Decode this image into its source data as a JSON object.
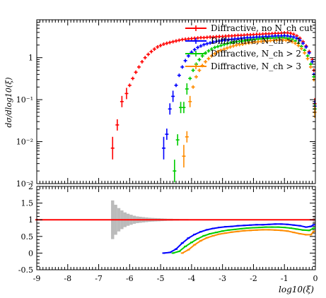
{
  "chart_data": [
    {
      "panel": "main",
      "type": "scatter",
      "ylabel": "dσ/dlog10(ξ)",
      "yscale": "log",
      "xlim": [
        -9,
        0
      ],
      "ylim": [
        0.001,
        8
      ],
      "y_tick_labels": [
        "10⁻³",
        "10⁻²",
        "10⁻¹",
        "1"
      ],
      "legend_position": "top-right",
      "series": [
        {
          "name": "Diffractive, no N_ch cut",
          "color": "#ff0000",
          "x": [
            -6.55,
            -6.4,
            -6.25,
            -6.1,
            -6.0,
            -5.9,
            -5.8,
            -5.7,
            -5.6,
            -5.5,
            -5.4,
            -5.3,
            -5.2,
            -5.1,
            -5.0,
            -4.9,
            -4.8,
            -4.7,
            -4.6,
            -4.5,
            -4.4,
            -4.3,
            -4.2,
            -4.1,
            -4.0,
            -3.9,
            -3.8,
            -3.7,
            -3.6,
            -3.5,
            -3.4,
            -3.3,
            -3.2,
            -3.1,
            -3.0,
            -2.9,
            -2.8,
            -2.7,
            -2.6,
            -2.5,
            -2.4,
            -2.3,
            -2.2,
            -2.1,
            -2.0,
            -1.9,
            -1.8,
            -1.7,
            -1.6,
            -1.5,
            -1.4,
            -1.3,
            -1.2,
            -1.1,
            -1.0,
            -0.9,
            -0.8,
            -0.7,
            -0.6,
            -0.5,
            -0.4,
            -0.3,
            -0.2,
            -0.1,
            -0.05,
            -0.02
          ],
          "y": [
            0.007,
            0.025,
            0.09,
            0.14,
            0.22,
            0.32,
            0.45,
            0.6,
            0.8,
            1.0,
            1.2,
            1.4,
            1.6,
            1.8,
            1.95,
            2.1,
            2.2,
            2.3,
            2.4,
            2.5,
            2.6,
            2.7,
            2.75,
            2.8,
            2.85,
            2.9,
            2.95,
            3.0,
            3.0,
            3.05,
            3.1,
            3.1,
            3.15,
            3.2,
            3.2,
            3.25,
            3.3,
            3.3,
            3.35,
            3.4,
            3.4,
            3.45,
            3.5,
            3.5,
            3.55,
            3.6,
            3.6,
            3.65,
            3.7,
            3.7,
            3.75,
            3.8,
            3.8,
            3.85,
            3.9,
            3.9,
            3.8,
            3.6,
            3.3,
            2.9,
            2.4,
            1.9,
            1.4,
            0.9,
            0.5,
            0.08
          ]
        },
        {
          "name": "Diffractive, N_ch > 1",
          "color": "#0000ff",
          "x": [
            -4.9,
            -4.8,
            -4.7,
            -4.6,
            -4.5,
            -4.4,
            -4.3,
            -4.2,
            -4.1,
            -4.0,
            -3.9,
            -3.8,
            -3.7,
            -3.6,
            -3.5,
            -3.4,
            -3.3,
            -3.2,
            -3.1,
            -3.0,
            -2.9,
            -2.8,
            -2.7,
            -2.6,
            -2.5,
            -2.4,
            -2.3,
            -2.2,
            -2.1,
            -2.0,
            -1.9,
            -1.8,
            -1.7,
            -1.6,
            -1.5,
            -1.4,
            -1.3,
            -1.2,
            -1.1,
            -1.0,
            -0.9,
            -0.8,
            -0.7,
            -0.6,
            -0.5,
            -0.4,
            -0.3,
            -0.2,
            -0.1,
            -0.05,
            -0.02
          ],
          "y": [
            0.007,
            0.015,
            0.06,
            0.12,
            0.22,
            0.38,
            0.6,
            0.85,
            1.1,
            1.35,
            1.55,
            1.75,
            1.9,
            2.05,
            2.15,
            2.25,
            2.35,
            2.45,
            2.5,
            2.6,
            2.65,
            2.7,
            2.75,
            2.8,
            2.85,
            2.9,
            2.95,
            3.0,
            3.0,
            3.05,
            3.1,
            3.1,
            3.15,
            3.2,
            3.2,
            3.25,
            3.3,
            3.3,
            3.3,
            3.35,
            3.3,
            3.2,
            3.1,
            2.9,
            2.6,
            2.2,
            1.8,
            1.3,
            0.8,
            0.4,
            0.07
          ]
        },
        {
          "name": "Diffractive, N_ch > 2",
          "color": "#00cc00",
          "x": [
            -4.55,
            -4.45,
            -4.35,
            -4.25,
            -4.15,
            -4.05,
            -3.95,
            -3.85,
            -3.75,
            -3.65,
            -3.55,
            -3.45,
            -3.35,
            -3.25,
            -3.15,
            -3.05,
            -2.95,
            -2.85,
            -2.75,
            -2.65,
            -2.55,
            -2.45,
            -2.35,
            -2.25,
            -2.15,
            -2.05,
            -1.95,
            -1.85,
            -1.75,
            -1.65,
            -1.55,
            -1.45,
            -1.35,
            -1.25,
            -1.15,
            -1.05,
            -0.95,
            -0.85,
            -0.75,
            -0.65,
            -0.55,
            -0.45,
            -0.35,
            -0.25,
            -0.15,
            -0.05,
            -0.02
          ],
          "y": [
            0.002,
            0.011,
            0.065,
            0.065,
            0.18,
            0.32,
            0.5,
            0.7,
            0.9,
            1.1,
            1.3,
            1.45,
            1.6,
            1.75,
            1.85,
            1.95,
            2.05,
            2.15,
            2.25,
            2.3,
            2.4,
            2.45,
            2.5,
            2.55,
            2.6,
            2.65,
            2.7,
            2.75,
            2.8,
            2.85,
            2.85,
            2.9,
            2.9,
            2.95,
            2.95,
            2.95,
            2.9,
            2.85,
            2.7,
            2.5,
            2.2,
            1.85,
            1.5,
            1.1,
            0.7,
            0.35,
            0.06
          ]
        },
        {
          "name": "Diffractive, N_ch > 3",
          "color": "#ff8c00",
          "x": [
            -4.25,
            -4.15,
            -4.05,
            -3.95,
            -3.85,
            -3.75,
            -3.65,
            -3.55,
            -3.45,
            -3.35,
            -3.25,
            -3.15,
            -3.05,
            -2.95,
            -2.85,
            -2.75,
            -2.65,
            -2.55,
            -2.45,
            -2.35,
            -2.25,
            -2.15,
            -2.05,
            -1.95,
            -1.85,
            -1.75,
            -1.65,
            -1.55,
            -1.45,
            -1.35,
            -1.25,
            -1.15,
            -1.05,
            -0.95,
            -0.85,
            -0.75,
            -0.65,
            -0.55,
            -0.45,
            -0.35,
            -0.25,
            -0.15,
            -0.05,
            -0.02
          ],
          "y": [
            0.0045,
            0.013,
            0.09,
            0.2,
            0.35,
            0.5,
            0.65,
            0.8,
            0.95,
            1.1,
            1.25,
            1.4,
            1.5,
            1.6,
            1.7,
            1.8,
            1.9,
            2.0,
            2.05,
            2.1,
            2.2,
            2.25,
            2.3,
            2.35,
            2.4,
            2.45,
            2.5,
            2.5,
            2.55,
            2.6,
            2.6,
            2.65,
            2.65,
            2.6,
            2.55,
            2.4,
            2.2,
            1.95,
            1.65,
            1.3,
            0.95,
            0.6,
            0.3,
            0.05
          ]
        }
      ]
    },
    {
      "panel": "ratio",
      "type": "line",
      "xlabel": "log10(ξ)",
      "xlim": [
        -9,
        0
      ],
      "ylim": [
        -0.5,
        2
      ],
      "x_tick_labels": [
        "-9",
        "-8",
        "-7",
        "-6",
        "-5",
        "-4",
        "-3",
        "-2",
        "-1",
        "0"
      ],
      "y_tick_labels": [
        "-0.5",
        "0",
        "0.5",
        "1",
        "1.5",
        "2"
      ],
      "uncertainty_band": {
        "color": "#bbbbbb",
        "x": [
          -6.55,
          -6.45,
          -6.35,
          -6.25,
          -6.15,
          -6.05,
          -5.95,
          -5.85,
          -5.75,
          -5.65,
          -5.55,
          -5.45,
          -5.35,
          -5.25,
          -5.15,
          -5.05,
          -4.95,
          -4.85,
          -4.75,
          -4.65,
          -4.55,
          -4.45,
          -4.35,
          -4.25,
          -4.15,
          -4.05
        ],
        "halfwidth": [
          0.58,
          0.45,
          0.35,
          0.28,
          0.22,
          0.18,
          0.15,
          0.12,
          0.1,
          0.09,
          0.08,
          0.07,
          0.06,
          0.055,
          0.05,
          0.045,
          0.04,
          0.035,
          0.03,
          0.03,
          0.025,
          0.025,
          0.02,
          0.02,
          0.02,
          0.015
        ]
      },
      "series": [
        {
          "name": "Diffractive, no N_ch cut",
          "color": "#ff0000",
          "x": [
            -9,
            -0.05
          ],
          "y": [
            1.0,
            1.0
          ]
        },
        {
          "name": "Diffractive, N_ch > 1",
          "color": "#0000ff",
          "x": [
            -4.9,
            -4.7,
            -4.5,
            -4.3,
            -4.1,
            -3.9,
            -3.7,
            -3.5,
            -3.3,
            -3.1,
            -2.9,
            -2.7,
            -2.5,
            -2.3,
            -2.1,
            -1.9,
            -1.7,
            -1.5,
            -1.3,
            -1.1,
            -0.9,
            -0.7,
            -0.5,
            -0.3,
            -0.15,
            -0.05
          ],
          "y": [
            0.0,
            0.02,
            0.12,
            0.3,
            0.45,
            0.56,
            0.64,
            0.7,
            0.74,
            0.77,
            0.79,
            0.8,
            0.82,
            0.83,
            0.84,
            0.85,
            0.85,
            0.86,
            0.87,
            0.87,
            0.86,
            0.84,
            0.82,
            0.78,
            0.8,
            0.85
          ]
        },
        {
          "name": "Diffractive, N_ch > 2",
          "color": "#00cc00",
          "x": [
            -4.6,
            -4.4,
            -4.2,
            -4.0,
            -3.8,
            -3.6,
            -3.4,
            -3.2,
            -3.0,
            -2.8,
            -2.6,
            -2.4,
            -2.2,
            -2.0,
            -1.8,
            -1.6,
            -1.4,
            -1.2,
            -1.0,
            -0.8,
            -0.6,
            -0.4,
            -0.2,
            -0.05
          ],
          "y": [
            0.0,
            0.05,
            0.2,
            0.32,
            0.43,
            0.52,
            0.58,
            0.62,
            0.66,
            0.69,
            0.71,
            0.73,
            0.75,
            0.76,
            0.77,
            0.78,
            0.78,
            0.78,
            0.77,
            0.75,
            0.72,
            0.69,
            0.68,
            0.75
          ]
        },
        {
          "name": "Diffractive, N_ch > 3",
          "color": "#ff8c00",
          "x": [
            -4.3,
            -4.1,
            -3.9,
            -3.7,
            -3.5,
            -3.3,
            -3.1,
            -2.9,
            -2.7,
            -2.5,
            -2.3,
            -2.1,
            -1.9,
            -1.7,
            -1.5,
            -1.3,
            -1.1,
            -0.9,
            -0.7,
            -0.5,
            -0.3,
            -0.15,
            -0.05
          ],
          "y": [
            0.0,
            0.1,
            0.25,
            0.37,
            0.46,
            0.52,
            0.57,
            0.6,
            0.63,
            0.65,
            0.67,
            0.68,
            0.69,
            0.7,
            0.7,
            0.69,
            0.68,
            0.66,
            0.62,
            0.58,
            0.55,
            0.55,
            0.65
          ]
        }
      ]
    }
  ]
}
